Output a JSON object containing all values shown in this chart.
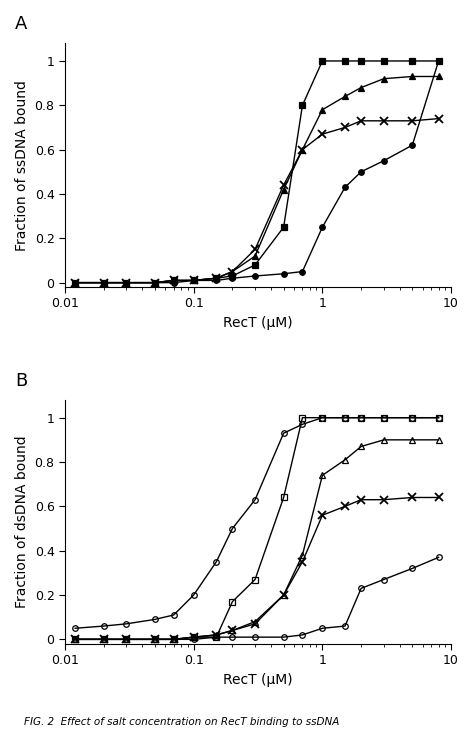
{
  "panel_A": {
    "ylabel": "Fraction of ssDNA bound",
    "xlabel": "RecT (μM)",
    "label": "A",
    "series": [
      {
        "name": "filled_square",
        "marker": "s",
        "fillstyle": "full",
        "color": "black",
        "x": [
          0.012,
          0.02,
          0.03,
          0.05,
          0.07,
          0.1,
          0.15,
          0.2,
          0.3,
          0.5,
          0.7,
          1.0,
          1.5,
          2.0,
          3.0,
          5.0,
          8.0
        ],
        "y": [
          0.0,
          0.0,
          0.0,
          0.0,
          0.01,
          0.01,
          0.02,
          0.03,
          0.08,
          0.25,
          0.8,
          1.0,
          1.0,
          1.0,
          1.0,
          1.0,
          1.0
        ]
      },
      {
        "name": "filled_circle",
        "marker": "o",
        "fillstyle": "full",
        "color": "black",
        "x": [
          0.012,
          0.02,
          0.03,
          0.05,
          0.07,
          0.1,
          0.15,
          0.2,
          0.3,
          0.5,
          0.7,
          1.0,
          1.5,
          2.0,
          3.0,
          5.0,
          8.0
        ],
        "y": [
          0.0,
          0.0,
          0.0,
          0.0,
          0.0,
          0.01,
          0.01,
          0.02,
          0.03,
          0.04,
          0.05,
          0.25,
          0.43,
          0.5,
          0.55,
          0.62,
          1.0
        ]
      },
      {
        "name": "filled_triangle",
        "marker": "^",
        "fillstyle": "full",
        "color": "black",
        "x": [
          0.012,
          0.02,
          0.03,
          0.05,
          0.07,
          0.1,
          0.15,
          0.2,
          0.3,
          0.5,
          0.7,
          1.0,
          1.5,
          2.0,
          3.0,
          5.0,
          8.0
        ],
        "y": [
          0.0,
          0.0,
          0.0,
          0.0,
          0.01,
          0.01,
          0.02,
          0.05,
          0.12,
          0.42,
          0.6,
          0.78,
          0.84,
          0.88,
          0.92,
          0.93,
          0.93
        ]
      },
      {
        "name": "x_marker",
        "marker": "x",
        "fillstyle": "full",
        "color": "black",
        "x": [
          0.012,
          0.02,
          0.03,
          0.05,
          0.07,
          0.1,
          0.15,
          0.2,
          0.3,
          0.5,
          0.7,
          1.0,
          1.5,
          2.0,
          3.0,
          5.0,
          8.0
        ],
        "y": [
          0.0,
          0.0,
          0.0,
          0.0,
          0.01,
          0.01,
          0.02,
          0.05,
          0.15,
          0.44,
          0.6,
          0.67,
          0.7,
          0.73,
          0.73,
          0.73,
          0.74
        ]
      }
    ]
  },
  "panel_B": {
    "ylabel": "Fraction of dsDNA bound",
    "xlabel": "RecT (μM)",
    "label": "B",
    "series": [
      {
        "name": "open_circle_fast",
        "marker": "o",
        "fillstyle": "none",
        "color": "black",
        "x": [
          0.012,
          0.02,
          0.03,
          0.05,
          0.07,
          0.1,
          0.15,
          0.2,
          0.3,
          0.5,
          0.7,
          1.0,
          1.5,
          2.0,
          3.0,
          5.0,
          8.0
        ],
        "y": [
          0.05,
          0.06,
          0.07,
          0.09,
          0.11,
          0.2,
          0.35,
          0.5,
          0.63,
          0.93,
          0.97,
          1.0,
          1.0,
          1.0,
          1.0,
          1.0,
          1.0
        ]
      },
      {
        "name": "open_square",
        "marker": "s",
        "fillstyle": "none",
        "color": "black",
        "x": [
          0.012,
          0.02,
          0.03,
          0.05,
          0.07,
          0.1,
          0.15,
          0.2,
          0.3,
          0.5,
          0.7,
          1.0,
          1.5,
          2.0,
          3.0,
          5.0,
          8.0
        ],
        "y": [
          0.0,
          0.0,
          0.0,
          0.0,
          0.0,
          0.01,
          0.01,
          0.17,
          0.27,
          0.64,
          1.0,
          1.0,
          1.0,
          1.0,
          1.0,
          1.0,
          1.0
        ]
      },
      {
        "name": "open_triangle",
        "marker": "^",
        "fillstyle": "none",
        "color": "black",
        "x": [
          0.012,
          0.02,
          0.03,
          0.05,
          0.07,
          0.1,
          0.15,
          0.2,
          0.3,
          0.5,
          0.7,
          1.0,
          1.5,
          2.0,
          3.0,
          5.0,
          8.0
        ],
        "y": [
          0.0,
          0.0,
          0.0,
          0.0,
          0.0,
          0.01,
          0.02,
          0.04,
          0.08,
          0.2,
          0.38,
          0.74,
          0.81,
          0.87,
          0.9,
          0.9,
          0.9
        ]
      },
      {
        "name": "x_marker",
        "marker": "x",
        "fillstyle": "full",
        "color": "black",
        "x": [
          0.012,
          0.02,
          0.03,
          0.05,
          0.07,
          0.1,
          0.15,
          0.2,
          0.3,
          0.5,
          0.7,
          1.0,
          1.5,
          2.0,
          3.0,
          5.0,
          8.0
        ],
        "y": [
          0.0,
          0.0,
          0.0,
          0.0,
          0.0,
          0.01,
          0.02,
          0.04,
          0.07,
          0.2,
          0.35,
          0.56,
          0.6,
          0.63,
          0.63,
          0.64,
          0.64
        ]
      },
      {
        "name": "open_circle_slow",
        "marker": "o",
        "fillstyle": "none",
        "color": "black",
        "x": [
          0.012,
          0.02,
          0.03,
          0.05,
          0.07,
          0.1,
          0.15,
          0.2,
          0.3,
          0.5,
          0.7,
          1.0,
          1.5,
          2.0,
          3.0,
          5.0,
          8.0
        ],
        "y": [
          0.0,
          0.0,
          0.0,
          0.0,
          0.0,
          0.0,
          0.01,
          0.01,
          0.01,
          0.01,
          0.02,
          0.05,
          0.06,
          0.23,
          0.27,
          0.32,
          0.37
        ]
      }
    ]
  },
  "caption": "FIG. 2  Effect of salt concentration on RecT binding to ssDNA",
  "figure_label_fontsize": 13,
  "axis_label_fontsize": 10,
  "tick_fontsize": 9,
  "marker_size": 4,
  "linewidth": 1.0,
  "background_color": "#ffffff"
}
